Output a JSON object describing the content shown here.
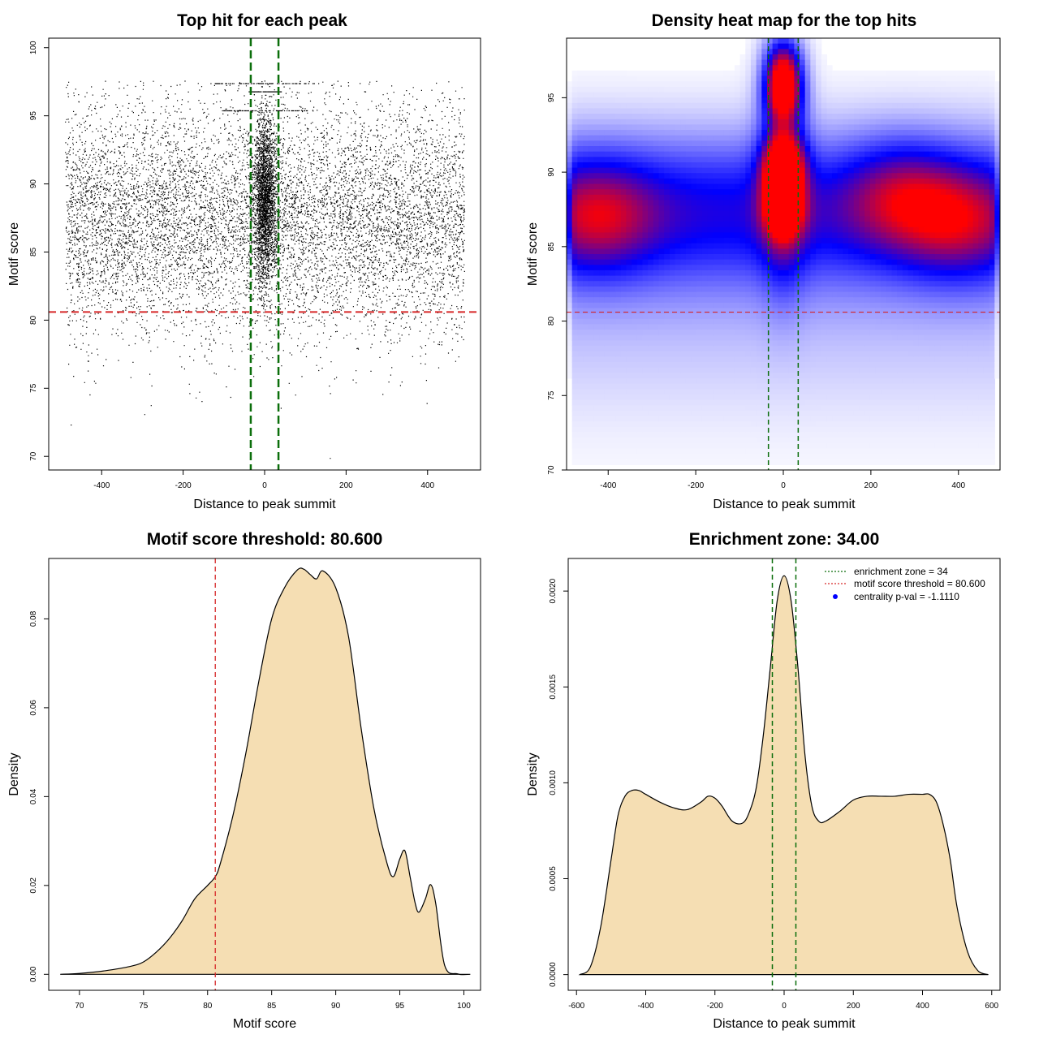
{
  "colors": {
    "points": "#000000",
    "threshold_line": "#d62728",
    "zone_line": "#0b6e0b",
    "density_fill": "#f5deb3",
    "heat_low": "#ffffff",
    "heat_mid": "#0000ff",
    "heat_high": "#ff0000",
    "legend_dot": "#0000ff"
  },
  "chart_data": [
    {
      "id": "scatter",
      "type": "scatter",
      "title": "Top hit for each peak",
      "xlabel": "Distance to peak summit",
      "ylabel": "Motif score",
      "xlim": [
        -530,
        530
      ],
      "ylim": [
        69,
        100.7
      ],
      "xticks": [
        -400,
        -200,
        0,
        200,
        400
      ],
      "yticks": [
        70,
        75,
        80,
        85,
        90,
        95,
        100
      ],
      "threshold": 80.6,
      "enrichment_zone": 34,
      "point_distribution": {
        "x_range": [
          -490,
          490
        ],
        "background_score_mean": 87.5,
        "background_score_sd": 4.2,
        "central_cluster_x_sd": 14,
        "central_cluster_score_mean": 89,
        "central_cluster_score_sd": 3
      }
    },
    {
      "id": "heatmap",
      "type": "heatmap",
      "title": "Density heat map for the top hits",
      "xlabel": "Distance to peak summit",
      "ylabel": "Motif score",
      "xlim": [
        -495,
        495
      ],
      "ylim": [
        70,
        99
      ],
      "xticks": [
        -400,
        -200,
        0,
        200,
        400
      ],
      "yticks": [
        70,
        75,
        80,
        85,
        90,
        95
      ],
      "threshold": 80.6,
      "enrichment_zone": 34,
      "hotspots": [
        {
          "x": 0,
          "y": 95.4,
          "intensity": 1.0
        },
        {
          "x": 0,
          "y": 97.3,
          "intensity": 0.7
        },
        {
          "x": 0,
          "y": 90.3,
          "intensity": 0.95
        },
        {
          "x": 0,
          "y": 87.5,
          "intensity": 0.75
        },
        {
          "x": -420,
          "y": 87,
          "intensity": 0.55
        },
        {
          "x": 270,
          "y": 88.5,
          "intensity": 0.5
        },
        {
          "x": 400,
          "y": 86.5,
          "intensity": 0.5
        }
      ]
    },
    {
      "id": "score_density",
      "type": "area",
      "title": "Motif score threshold: 80.600",
      "xlabel": "Motif score",
      "ylabel": "Density",
      "xlim": [
        67.6,
        101.3
      ],
      "ylim": [
        -0.0036,
        0.0936
      ],
      "xticks": [
        70,
        75,
        80,
        85,
        90,
        95,
        100
      ],
      "yticks": [
        0.0,
        0.02,
        0.04,
        0.06,
        0.08
      ],
      "ytick_labels": [
        "0.00",
        "0.02",
        "0.04",
        "0.06",
        "0.08"
      ],
      "threshold": 80.6,
      "x": [
        68.5,
        70,
        72,
        74,
        75,
        76,
        77,
        78,
        79,
        80,
        80.6,
        81,
        82,
        83,
        84,
        85,
        86,
        87,
        87.5,
        88,
        88.5,
        89,
        90,
        91,
        92,
        93,
        94,
        94.5,
        95,
        95.4,
        95.8,
        96.2,
        96.5,
        97,
        97.4,
        97.8,
        98.5,
        99.5,
        100.5
      ],
      "y": [
        0.0,
        0.0002,
        0.0008,
        0.0018,
        0.0028,
        0.005,
        0.008,
        0.012,
        0.017,
        0.02,
        0.022,
        0.025,
        0.036,
        0.05,
        0.066,
        0.08,
        0.087,
        0.091,
        0.0912,
        0.09,
        0.089,
        0.0908,
        0.087,
        0.076,
        0.055,
        0.037,
        0.025,
        0.022,
        0.026,
        0.0278,
        0.022,
        0.016,
        0.014,
        0.017,
        0.0202,
        0.016,
        0.002,
        0.0001,
        0.0
      ]
    },
    {
      "id": "distance_density",
      "type": "area",
      "title": "Enrichment zone: 34.00",
      "xlabel": "Distance to peak summit",
      "ylabel": "Density",
      "xlim": [
        -624,
        624
      ],
      "ylim": [
        -8.2e-05,
        0.00217
      ],
      "xticks": [
        -600,
        -400,
        -200,
        0,
        200,
        400,
        600
      ],
      "yticks": [
        0.0,
        0.0005,
        0.001,
        0.0015,
        0.002
      ],
      "ytick_labels": [
        "0.0000",
        "0.0005",
        "0.0010",
        "0.0015",
        "0.0020"
      ],
      "enrichment_zone": 34,
      "x": [
        -590,
        -560,
        -530,
        -500,
        -480,
        -460,
        -440,
        -420,
        -400,
        -360,
        -320,
        -280,
        -240,
        -220,
        -200,
        -180,
        -150,
        -120,
        -100,
        -80,
        -60,
        -40,
        -20,
        0,
        20,
        40,
        60,
        80,
        100,
        120,
        160,
        200,
        240,
        280,
        320,
        360,
        400,
        420,
        440,
        460,
        480,
        500,
        530,
        560,
        590
      ],
      "y": [
        0.0,
        4e-05,
        0.00025,
        0.0006,
        0.00083,
        0.00093,
        0.00096,
        0.00096,
        0.00094,
        0.0009,
        0.00087,
        0.00086,
        0.0009,
        0.00093,
        0.00092,
        0.00088,
        0.0008,
        0.00079,
        0.00085,
        0.00098,
        0.00125,
        0.0016,
        0.00195,
        0.00208,
        0.00195,
        0.0016,
        0.00115,
        0.00088,
        0.0008,
        0.0008,
        0.00085,
        0.00091,
        0.00093,
        0.00093,
        0.00093,
        0.00094,
        0.00094,
        0.00094,
        0.0009,
        0.00078,
        0.0006,
        0.00035,
        0.00012,
        2e-05,
        0.0
      ]
    }
  ],
  "legend": {
    "items": [
      {
        "label": "enrichment zone = 34",
        "marker": "dotted-line",
        "color": "#0b6e0b"
      },
      {
        "label": "motif score threshold = 80.600",
        "marker": "dotted-line",
        "color": "#d62728"
      },
      {
        "label": "centrality p-val = -1.1110",
        "marker": "dot",
        "color": "#0000ff"
      }
    ]
  }
}
